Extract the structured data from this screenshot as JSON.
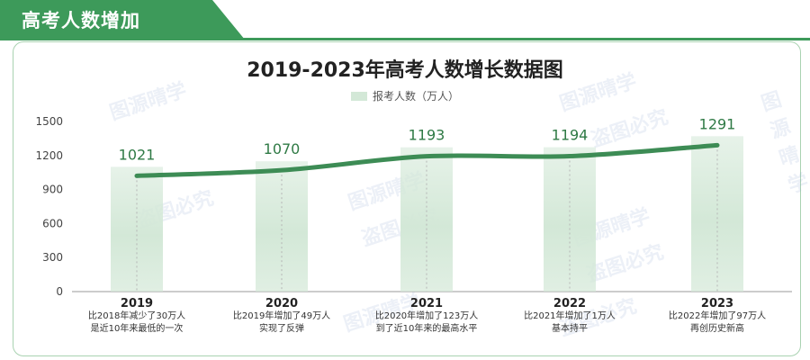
{
  "header": {
    "title": "高考人数增加"
  },
  "watermark_text": [
    "图源晴学",
    "盗图必究"
  ],
  "colors": {
    "accent": "#3d9a5a",
    "bar": "#d3e8d7",
    "line": "#3d8c55"
  },
  "chart_data": {
    "type": "bar",
    "title": "2019-2023年高考人数增长数据图",
    "series": [
      {
        "name": "报考人数（万人）",
        "values": [
          1021,
          1070,
          1193,
          1194,
          1291
        ]
      }
    ],
    "categories": [
      "2019",
      "2020",
      "2021",
      "2022",
      "2023"
    ],
    "data_labels": [
      "1021",
      "1070",
      "1193",
      "1194",
      "1291"
    ],
    "y_ticks": [
      "0",
      "300",
      "600",
      "900",
      "1200",
      "1500"
    ],
    "ylim": [
      0,
      1500
    ],
    "overlay": "smoothed-line",
    "legend_position": "top-center",
    "grid": false,
    "annotations": [
      [
        "比2018年减少了30万人",
        "是近10年来最低的一次"
      ],
      [
        "比2019年增加了49万人",
        "实现了反弹"
      ],
      [
        "比2020年增加了123万人",
        "到了近10年来的最高水平"
      ],
      [
        "比2021年增加了1万人",
        "基本持平"
      ],
      [
        "比2022年增加了97万人",
        "再创历史新高"
      ]
    ]
  }
}
